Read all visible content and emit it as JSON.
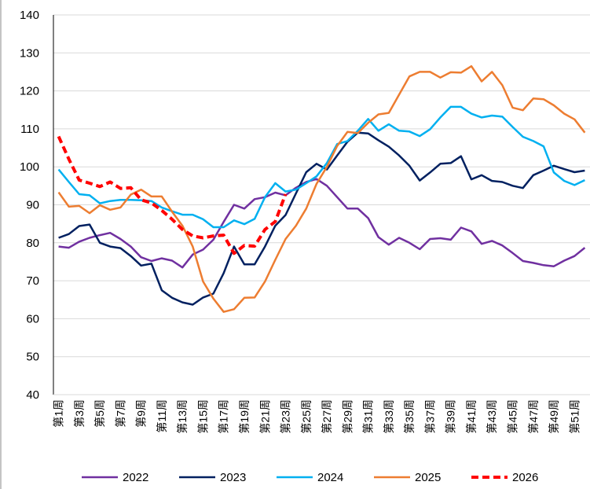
{
  "chart_data": {
    "type": "line",
    "categories": [
      "第1周",
      null,
      "第3周",
      null,
      "第5周",
      null,
      "第7周",
      null,
      "第9周",
      null,
      "第11周",
      null,
      "第13周",
      null,
      "第15周",
      null,
      "第17周",
      null,
      "第19周",
      null,
      "第21周",
      null,
      "第23周",
      null,
      "第25周",
      null,
      "第27周",
      null,
      "第29周",
      null,
      "第31周",
      null,
      "第33周",
      null,
      "第35周",
      null,
      "第37周",
      null,
      "第39周",
      null,
      "第41周",
      null,
      "第43周",
      null,
      "第45周",
      null,
      "第47周",
      null,
      "第49周",
      null,
      "第51周",
      null
    ],
    "series": [
      {
        "name": "2022",
        "color": "#7030a0",
        "values": [
          79,
          78.7,
          80.3,
          81.3,
          82,
          82.6,
          81,
          79,
          76.2,
          75.2,
          75.9,
          75.3,
          73.5,
          76.9,
          78.2,
          80.8,
          85.5,
          90,
          89,
          91.5,
          92,
          93.2,
          92.5,
          94.5,
          96,
          96.8,
          95,
          92,
          89,
          89,
          86.5,
          81.5,
          79.5,
          81.3,
          80,
          78.3,
          81,
          81.2,
          80.8,
          84,
          83,
          79.7,
          80.5,
          79.3,
          77.3,
          75.2,
          74.7,
          74.1,
          73.8,
          75.3,
          76.5,
          78.7
        ]
      },
      {
        "name": "2023",
        "color": "#002060",
        "values": [
          81.3,
          82.3,
          84.4,
          84.8,
          80,
          79,
          78.6,
          76.5,
          74,
          74.5,
          67.5,
          65.5,
          64.3,
          63.7,
          65.6,
          66.6,
          72,
          79,
          74.3,
          74.3,
          79,
          84.5,
          87.3,
          93,
          98.6,
          100.8,
          99.3,
          103,
          106.6,
          109,
          108.8,
          107,
          105.3,
          103,
          100.3,
          96.4,
          98.5,
          100.8,
          101,
          102.8,
          96.7,
          97.8,
          96.3,
          96,
          95,
          94.4,
          97.8,
          99,
          100.3,
          99.4,
          98.6,
          99
        ]
      },
      {
        "name": "2024",
        "color": "#00b0f0",
        "values": [
          99.3,
          96,
          92.8,
          92.5,
          90.4,
          91,
          91.3,
          91.3,
          91.2,
          91,
          89.3,
          88.3,
          87.4,
          87.4,
          86.2,
          84.1,
          84.1,
          85.9,
          84.9,
          86.3,
          92,
          95.7,
          93.5,
          94,
          95.7,
          97.5,
          101,
          106,
          106.8,
          109.5,
          112.6,
          109.5,
          111.2,
          109.5,
          109.3,
          108.1,
          109.9,
          113,
          115.8,
          115.8,
          114,
          113,
          113.5,
          113.2,
          110.5,
          107.9,
          106.8,
          105.4,
          98.5,
          96.3,
          95.2,
          96.5
        ]
      },
      {
        "name": "2025",
        "color": "#ed7d31",
        "values": [
          93.3,
          89.5,
          89.7,
          87.8,
          89.9,
          88.7,
          89.3,
          92.7,
          94,
          92.2,
          92.2,
          88.2,
          84.5,
          79,
          69.8,
          65.3,
          61.8,
          62.5,
          65.5,
          65.6,
          69.8,
          75.5,
          81,
          84.5,
          89,
          95.5,
          100,
          105.5,
          109.2,
          108.9,
          111.6,
          113.8,
          114.2,
          119,
          123.8,
          125,
          125,
          123.5,
          124.9,
          124.8,
          126.5,
          122.5,
          125,
          121.5,
          115.6,
          114.9,
          118,
          117.8,
          116.2,
          114,
          112.5,
          109
        ]
      },
      {
        "name": "2026",
        "color": "#ff0000",
        "dashed": true,
        "values": [
          108,
          102,
          96.5,
          95.7,
          94.8,
          96,
          94.3,
          94.5,
          91.3,
          90.5,
          88.5,
          86.2,
          83.5,
          81.8,
          81.3,
          81.8,
          82,
          77.2,
          79.3,
          79.1,
          83.5,
          85.6,
          92.8,
          null,
          null,
          null,
          null,
          null,
          null,
          null,
          null,
          null,
          null,
          null,
          null,
          null,
          null,
          null,
          null,
          null,
          null,
          null,
          null,
          null,
          null,
          null,
          null,
          null,
          null,
          null,
          null,
          null
        ]
      }
    ],
    "ylim": [
      40,
      140
    ],
    "yticks": [
      40,
      50,
      60,
      70,
      80,
      90,
      100,
      110,
      120,
      130,
      140
    ],
    "grid": true,
    "legend": "bottom"
  }
}
